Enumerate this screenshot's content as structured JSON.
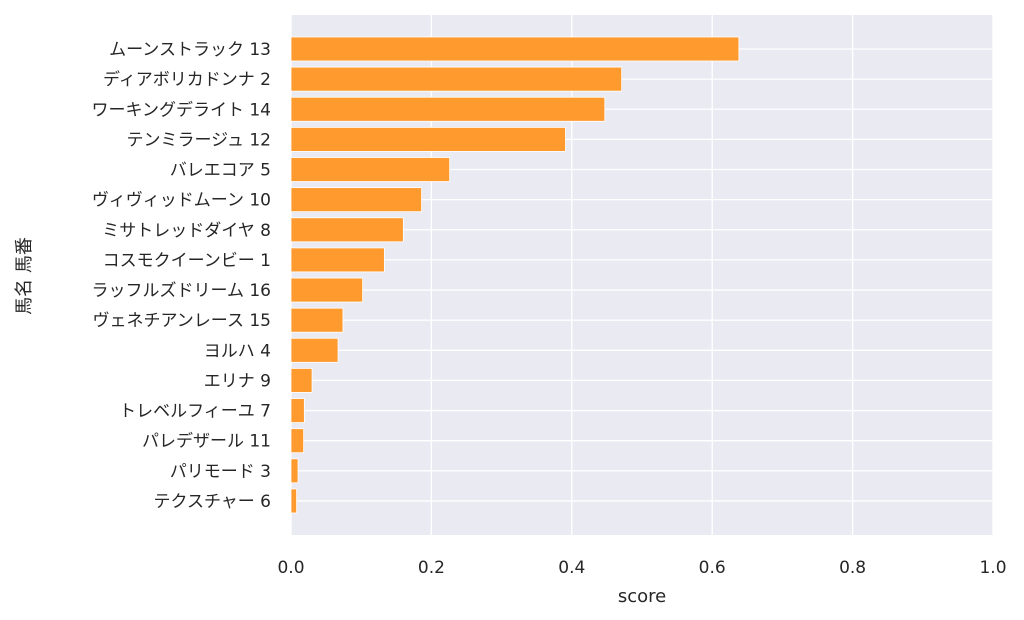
{
  "chart_data": {
    "type": "bar",
    "orientation": "horizontal",
    "xlabel": "score",
    "ylabel": "馬名 馬番",
    "xlim": [
      0,
      1.0
    ],
    "xticks": [
      "0.0",
      "0.2",
      "0.4",
      "0.6",
      "0.8",
      "1.0"
    ],
    "grid": true,
    "bar_color": "#ff9a2e",
    "background_color": "#eaeaf2",
    "categories": [
      "ムーンストラック 13",
      "ディアボリカドンナ 2",
      "ワーキングデライト 14",
      "テンミラージュ 12",
      "バレエコア 5",
      "ヴィヴィッドムーン 10",
      "ミサトレッドダイヤ 8",
      "コスモクイーンビー 1",
      "ラッフルズドリーム 16",
      "ヴェネチアンレース 15",
      "ヨルハ 4",
      "エリナ 9",
      "トレベルフィーユ 7",
      "パレデザール 11",
      "パリモード 3",
      "テクスチャー 6"
    ],
    "values": [
      0.638,
      0.471,
      0.447,
      0.391,
      0.226,
      0.186,
      0.16,
      0.133,
      0.102,
      0.074,
      0.067,
      0.03,
      0.019,
      0.018,
      0.01,
      0.008
    ]
  }
}
